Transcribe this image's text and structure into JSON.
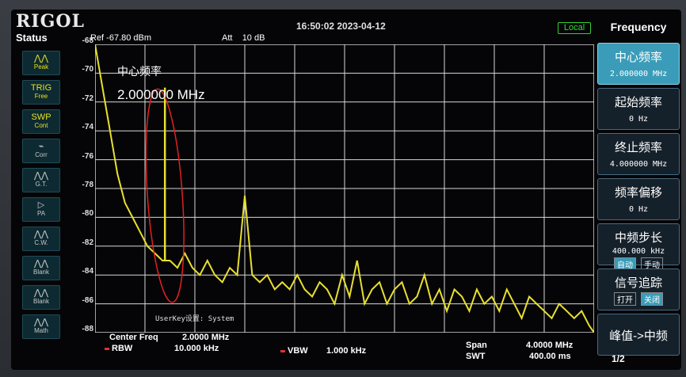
{
  "brand": "RIGOL",
  "clock": "16:50:02 2023-04-12",
  "local": "Local",
  "status": {
    "title": "Status",
    "buttons": [
      {
        "icon": "peak-icon",
        "label": "Peak",
        "top": ""
      },
      {
        "icon": "trig-icon",
        "label": "Free",
        "top": "TRIG"
      },
      {
        "icon": "swp-icon",
        "label": "Cont",
        "top": "SWP"
      },
      {
        "icon": "corr-icon",
        "label": "Corr",
        "top": ""
      },
      {
        "icon": "gt-icon",
        "label": "G.T.",
        "top": ""
      },
      {
        "icon": "pa-icon",
        "label": "PA",
        "top": ""
      },
      {
        "icon": "cw-icon",
        "label": "C.W.",
        "top": ""
      },
      {
        "icon": "blank-icon",
        "label": "Blank",
        "top": ""
      },
      {
        "icon": "blank-icon",
        "label": "Blank",
        "top": ""
      },
      {
        "icon": "math-icon",
        "label": "Math",
        "top": ""
      }
    ]
  },
  "header": {
    "ref": "Ref -67.80 dBm",
    "att_label": "Att",
    "att_value": "10 dB"
  },
  "y_labels": [
    "-68",
    "-70",
    "-72",
    "-74",
    "-76",
    "-78",
    "-80",
    "-82",
    "-84",
    "-86",
    "-88"
  ],
  "marker": {
    "name": "中心频率",
    "value": "2.000000 MHz"
  },
  "userkey": "UserKey设置:   System",
  "bottom": {
    "center_label": "Center Freq",
    "center_value": "2.0000 MHz",
    "rbw_label": "RBW",
    "rbw_value": "10.000 kHz",
    "vbw_label": "VBW",
    "vbw_value": "1.000 kHz",
    "span_label": "Span",
    "span_value": "4.0000 MHz",
    "swt_label": "SWT",
    "swt_value": "400.00 ms"
  },
  "menu": {
    "title": "Frequency",
    "items": [
      {
        "label": "中心频率",
        "value": "2.000000 MHz"
      },
      {
        "label": "起始频率",
        "value": "0 Hz"
      },
      {
        "label": "终止频率",
        "value": "4.000000 MHz"
      },
      {
        "label": "频率偏移",
        "value": "0 Hz"
      },
      {
        "label": "中频步长",
        "value": "400.000 kHz",
        "opt_a": "自动",
        "opt_b": "手动"
      },
      {
        "label": "信号追踪",
        "opt_a": "打开",
        "opt_b": "关闭"
      },
      {
        "label": "峰值->中频"
      }
    ],
    "page": "1/2"
  },
  "chart_data": {
    "type": "line",
    "x_unit": "MHz",
    "xlim": [
      0,
      4
    ],
    "ylim": [
      -88,
      -68
    ],
    "y_unit": "dBm",
    "grid": true,
    "series": [
      {
        "color": "#e8e030",
        "x": [
          0.0,
          0.06,
          0.12,
          0.18,
          0.24,
          0.3,
          0.36,
          0.42,
          0.48,
          0.54,
          0.6,
          0.66,
          0.72,
          0.78,
          0.84,
          0.9,
          0.96,
          1.02,
          1.08,
          1.14,
          1.2,
          1.26,
          1.32,
          1.38,
          1.44,
          1.5,
          1.56,
          1.62,
          1.68,
          1.74,
          1.8,
          1.86,
          1.92,
          1.98,
          2.04,
          2.1,
          2.16,
          2.22,
          2.28,
          2.34,
          2.4,
          2.46,
          2.52,
          2.58,
          2.64,
          2.7,
          2.76,
          2.82,
          2.88,
          2.94,
          3.0,
          3.06,
          3.12,
          3.18,
          3.24,
          3.3,
          3.36,
          3.42,
          3.48,
          3.54,
          3.6,
          3.66,
          3.72,
          3.78,
          3.84,
          3.9,
          3.96,
          4.0
        ],
        "y": [
          -68,
          -71,
          -74,
          -77,
          -79,
          -80,
          -81,
          -82,
          -82.5,
          -83,
          -83,
          -83.5,
          -82.5,
          -83.5,
          -84,
          -83,
          -84,
          -84.5,
          -83.5,
          -84,
          -78.5,
          -84,
          -84.5,
          -84,
          -85,
          -84.5,
          -85,
          -84,
          -85,
          -85.5,
          -84.5,
          -85,
          -86,
          -84,
          -85.5,
          -83,
          -86,
          -85,
          -84.5,
          -86,
          -85,
          -84.5,
          -86,
          -85.5,
          -84,
          -86,
          -85,
          -86.5,
          -85,
          -85.5,
          -86.5,
          -85,
          -86,
          -85.5,
          -86.5,
          -85,
          -86,
          -87,
          -85.5,
          -86,
          -86.5,
          -87,
          -86,
          -86.5,
          -87,
          -86.5,
          -87.5,
          -88
        ]
      }
    ],
    "spurs": [
      {
        "x": 0.56,
        "y": -71
      }
    ]
  }
}
